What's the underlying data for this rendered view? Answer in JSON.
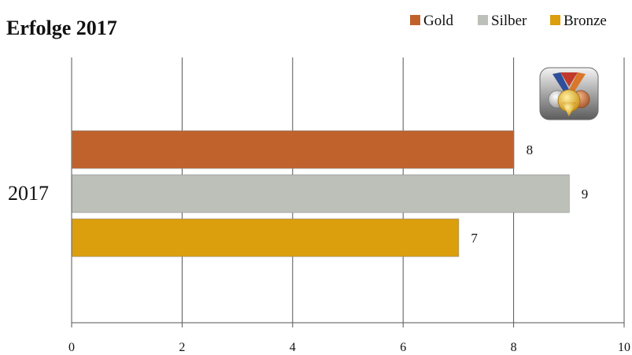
{
  "chart_data": {
    "type": "bar",
    "orientation": "horizontal",
    "title": "Erfolge 2017",
    "categories": [
      "2017"
    ],
    "series": [
      {
        "name": "Gold",
        "values": [
          8
        ],
        "color": "#C0622C"
      },
      {
        "name": "Silber",
        "values": [
          9
        ],
        "color": "#BCC0B8"
      },
      {
        "name": "Bronze",
        "values": [
          7
        ],
        "color": "#DB9E0C"
      }
    ],
    "xlim": [
      0,
      10
    ],
    "xticks": [
      "0",
      "2",
      "4",
      "6",
      "8",
      "10"
    ],
    "grid": true,
    "legend": "top-right",
    "data_labels": true,
    "icon": "medal-icon"
  }
}
